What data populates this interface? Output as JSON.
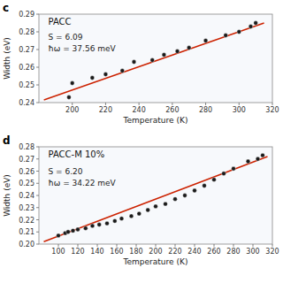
{
  "chart_data": [
    {
      "type": "scatter",
      "panel_label": "c",
      "title": "PACC",
      "annotations": [
        "S = 6.09",
        "ħω = 37.56 meV"
      ],
      "xlabel": "Temperature (K)",
      "ylabel": "Width (eV)",
      "xlim": [
        180,
        320
      ],
      "ylim": [
        0.24,
        0.29
      ],
      "xticks": [
        200,
        220,
        240,
        260,
        280,
        300,
        320
      ],
      "yticks": [
        0.24,
        0.25,
        0.26,
        0.27,
        0.28,
        0.29
      ],
      "grid": false,
      "series": [
        {
          "type": "scatter",
          "color": "#1a1a1a",
          "x": [
            198,
            200,
            212,
            220,
            230,
            237,
            248,
            255,
            263,
            270,
            280,
            292,
            300,
            307,
            310
          ],
          "values": [
            0.243,
            0.251,
            0.254,
            0.256,
            0.258,
            0.263,
            0.264,
            0.267,
            0.269,
            0.271,
            0.275,
            0.278,
            0.28,
            0.283,
            0.285
          ]
        },
        {
          "type": "line",
          "color": "#cc2200",
          "x": [
            183,
            315
          ],
          "values": [
            0.2415,
            0.285
          ]
        }
      ]
    },
    {
      "type": "scatter",
      "panel_label": "d",
      "title": "PACC-M 10%",
      "annotations": [
        "S = 6.20",
        "ħω = 34.22 meV"
      ],
      "xlabel": "Temperature (K)",
      "ylabel": "Width (eV)",
      "xlim": [
        80,
        320
      ],
      "ylim": [
        0.2,
        0.28
      ],
      "xticks": [
        100,
        120,
        140,
        160,
        180,
        200,
        220,
        240,
        260,
        280,
        300,
        320
      ],
      "yticks": [
        {
          "value": 0.2,
          "label": "0.20"
        },
        0.21,
        0.22,
        0.23,
        0.24,
        0.25,
        0.26,
        0.27,
        0.28
      ],
      "grid": false,
      "series": [
        {
          "type": "scatter",
          "color": "#1a1a1a",
          "x": [
            100,
            107,
            110,
            115,
            120,
            128,
            135,
            142,
            150,
            158,
            165,
            175,
            183,
            192,
            200,
            210,
            220,
            230,
            240,
            250,
            260,
            270,
            280,
            295,
            305,
            310
          ],
          "values": [
            0.207,
            0.209,
            0.21,
            0.211,
            0.212,
            0.213,
            0.215,
            0.216,
            0.217,
            0.219,
            0.221,
            0.223,
            0.225,
            0.228,
            0.231,
            0.233,
            0.237,
            0.24,
            0.244,
            0.248,
            0.253,
            0.258,
            0.262,
            0.268,
            0.27,
            0.273
          ]
        },
        {
          "type": "line",
          "color": "#cc2200",
          "x": [
            85,
            315
          ],
          "values": [
            0.202,
            0.272
          ]
        }
      ]
    }
  ]
}
